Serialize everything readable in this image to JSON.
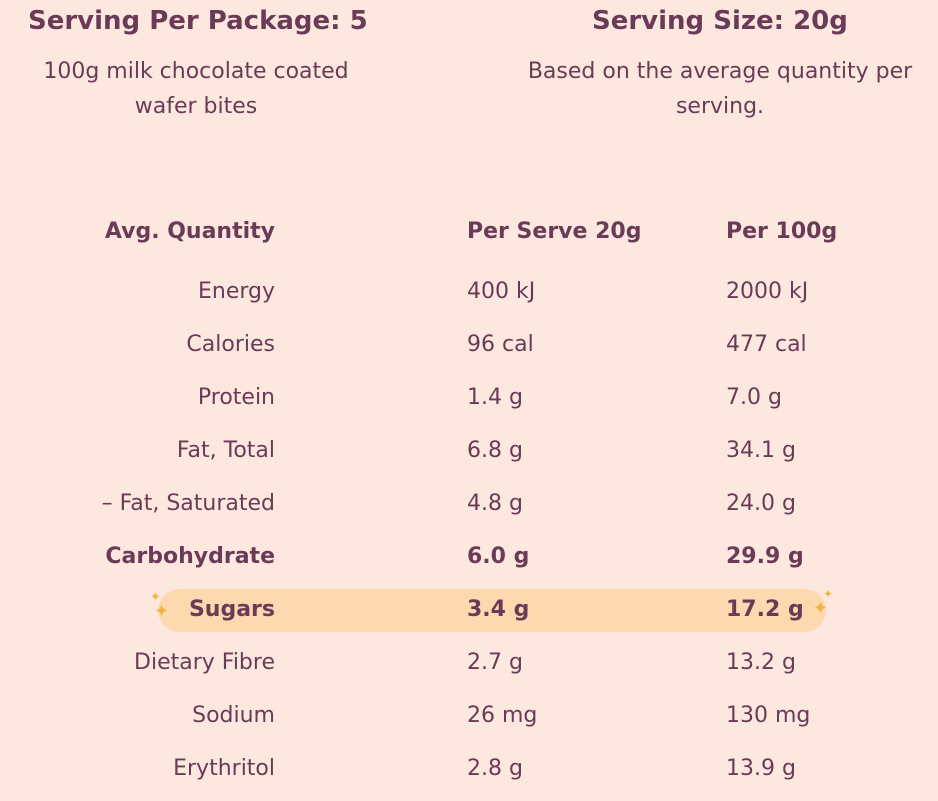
{
  "header": {
    "serving_per_package": "Serving Per Package: 5",
    "product_description": "100g milk chocolate coated wafer bites",
    "serving_size": "Serving Size: 20g",
    "serving_note": "Based on the average quantity per serving."
  },
  "table": {
    "columns": [
      "Avg. Quantity",
      "Per Serve 20g",
      "Per 100g"
    ],
    "rows": [
      {
        "name": "Energy",
        "per_serve": "400 kJ",
        "per_100g": "2000 kJ"
      },
      {
        "name": "Calories",
        "per_serve": "96 cal",
        "per_100g": "477 cal"
      },
      {
        "name": "Protein",
        "per_serve": "1.4 g",
        "per_100g": "7.0 g"
      },
      {
        "name": "Fat, Total",
        "per_serve": "6.8 g",
        "per_100g": "34.1 g"
      },
      {
        "name": "– Fat, Saturated",
        "per_serve": "4.8 g",
        "per_100g": "24.0 g"
      },
      {
        "name": "Carbohydrate",
        "per_serve": "6.0 g",
        "per_100g": "29.9 g"
      },
      {
        "name": "Sugars",
        "per_serve": "3.4 g",
        "per_100g": "17.2 g"
      },
      {
        "name": "Dietary Fibre",
        "per_serve": "2.7 g",
        "per_100g": "13.2 g"
      },
      {
        "name": "Sodium",
        "per_serve": "26 mg",
        "per_100g": "130 mg"
      },
      {
        "name": "Erythritol",
        "per_serve": "2.8 g",
        "per_100g": "13.9 g"
      }
    ]
  },
  "icons": {
    "sparkle_left": "sparkle-icon",
    "sparkle_right": "sparkle-icon",
    "sparkle_glyph": "✦"
  },
  "colors": {
    "background": "#fde8df",
    "text": "#6b3a57",
    "highlight": "#fdd9b0",
    "sparkle": "#f1b43c"
  }
}
